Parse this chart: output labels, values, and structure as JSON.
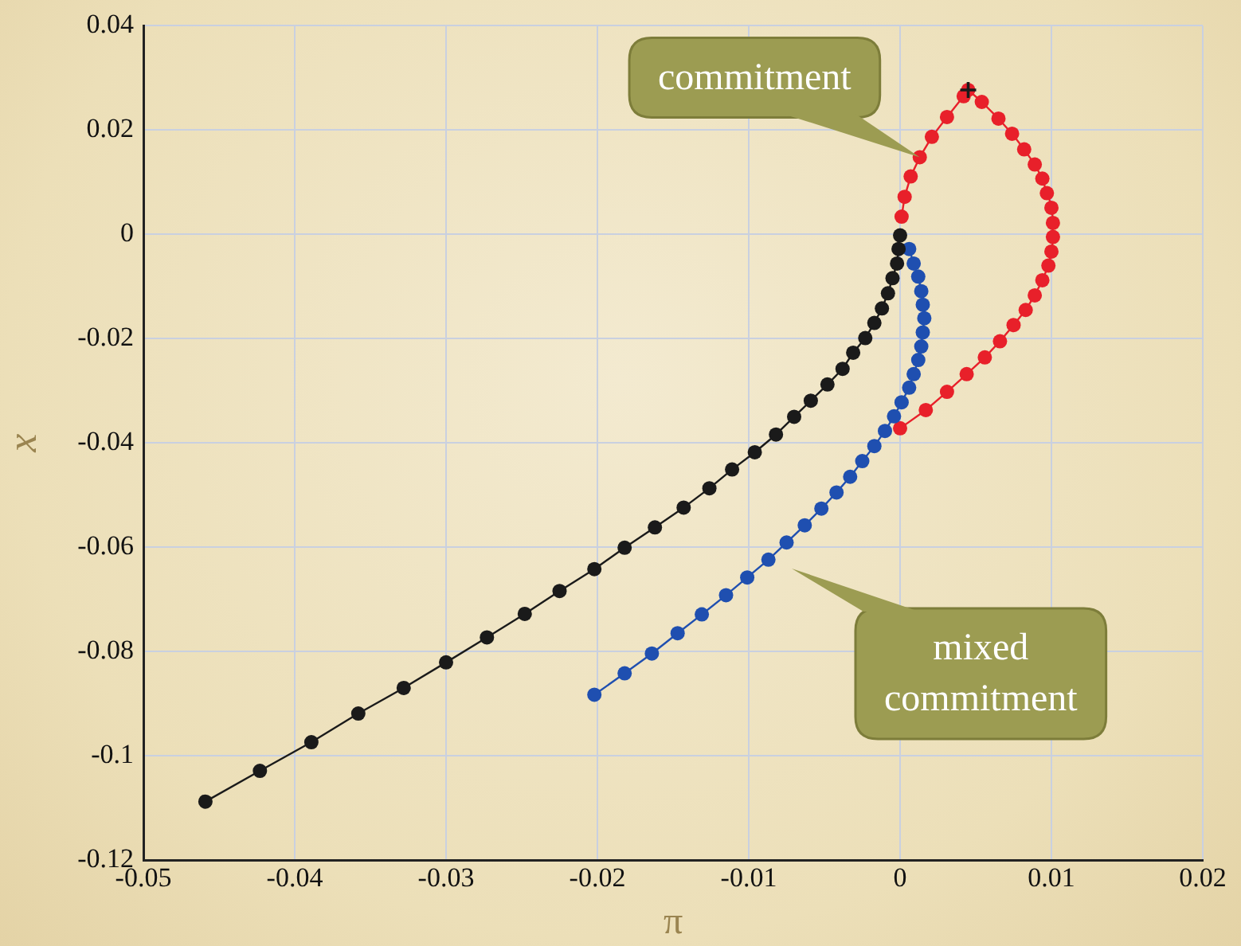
{
  "chart_data": {
    "type": "line",
    "xlabel": "π",
    "ylabel": "x",
    "xlim": [
      -0.05,
      0.02
    ],
    "ylim": [
      -0.12,
      0.04
    ],
    "xticks": [
      -0.05,
      -0.04,
      -0.03,
      -0.02,
      -0.01,
      0,
      0.01,
      0.02
    ],
    "yticks": [
      -0.12,
      -0.1,
      -0.08,
      -0.06,
      -0.04,
      -0.02,
      0,
      0.02,
      0.04
    ],
    "grid": true,
    "marker": "circle",
    "line_style": "solid",
    "series": [
      {
        "color": "#1a1a1a",
        "x": [
          -0.0459,
          -0.0423,
          -0.0389,
          -0.0358,
          -0.0328,
          -0.03,
          -0.0273,
          -0.0248,
          -0.0225,
          -0.0202,
          -0.0182,
          -0.0162,
          -0.0143,
          -0.0126,
          -0.0111,
          -0.0096,
          -0.0082,
          -0.007,
          -0.0059,
          -0.0048,
          -0.0038,
          -0.0031,
          -0.0023,
          -0.0017,
          -0.0012,
          -0.0008,
          -0.0005,
          -0.0002,
          -0.0001,
          0
        ],
        "values": [
          -0.1088,
          -0.1029,
          -0.0974,
          -0.0919,
          -0.087,
          -0.0821,
          -0.0773,
          -0.0728,
          -0.0684,
          -0.0642,
          -0.0601,
          -0.0562,
          -0.0524,
          -0.0487,
          -0.0451,
          -0.0418,
          -0.0384,
          -0.035,
          -0.0319,
          -0.0288,
          -0.0258,
          -0.0227,
          -0.0199,
          -0.017,
          -0.0142,
          -0.0113,
          -0.0084,
          -0.0056,
          -0.0028,
          -0.0002
        ]
      },
      {
        "color": "#1f4fb0",
        "x": [
          -0.0202,
          -0.0182,
          -0.0164,
          -0.0147,
          -0.0131,
          -0.0115,
          -0.0101,
          -0.0087,
          -0.0075,
          -0.0063,
          -0.0052,
          -0.0042,
          -0.0033,
          -0.0025,
          -0.0017,
          -0.001,
          -0.0004,
          0.0001,
          0.0006,
          0.0009,
          0.0012,
          0.0014,
          0.0015,
          0.0016,
          0.0015,
          0.0014,
          0.0012,
          0.0009,
          0.0006
        ],
        "values": [
          -0.0883,
          -0.0842,
          -0.0804,
          -0.0765,
          -0.0729,
          -0.0692,
          -0.0658,
          -0.0624,
          -0.0591,
          -0.0558,
          -0.0526,
          -0.0495,
          -0.0465,
          -0.0435,
          -0.0406,
          -0.0377,
          -0.0349,
          -0.0322,
          -0.0294,
          -0.0268,
          -0.0241,
          -0.0215,
          -0.0188,
          -0.0161,
          -0.0135,
          -0.0109,
          -0.0081,
          -0.0056,
          -0.0028
        ]
      },
      {
        "color": "#e8202a",
        "x": [
          0,
          0.0017,
          0.0031,
          0.0044,
          0.0056,
          0.0066,
          0.0075,
          0.0083,
          0.0089,
          0.0094,
          0.0098,
          0.01,
          0.0101,
          0.0101,
          0.01,
          0.0097,
          0.0094,
          0.0089,
          0.0082,
          0.0074,
          0.0065,
          0.0054,
          0.0045,
          0.0042,
          0.0031,
          0.0021,
          0.0013,
          0.0007,
          0.0003,
          0.0001
        ],
        "values": [
          -0.0372,
          -0.0337,
          -0.0302,
          -0.0268,
          -0.0236,
          -0.0205,
          -0.0174,
          -0.0145,
          -0.0117,
          -0.0088,
          -0.006,
          -0.0033,
          -0.0005,
          0.0022,
          0.0051,
          0.0079,
          0.0107,
          0.0134,
          0.0163,
          0.0193,
          0.0222,
          0.0254,
          0.0277,
          0.0265,
          0.0225,
          0.0187,
          0.0148,
          0.0111,
          0.0072,
          0.0034
        ]
      },
      {
        "type": "scatter",
        "marker": "cross",
        "color": "#1a1a1a",
        "x": [
          0.0045
        ],
        "values": [
          0.0277
        ]
      }
    ],
    "annotations": [
      {
        "text": "commitment",
        "x": 0.0013,
        "y": 0.0148
      },
      "mixed\ncommitment"
    ]
  }
}
